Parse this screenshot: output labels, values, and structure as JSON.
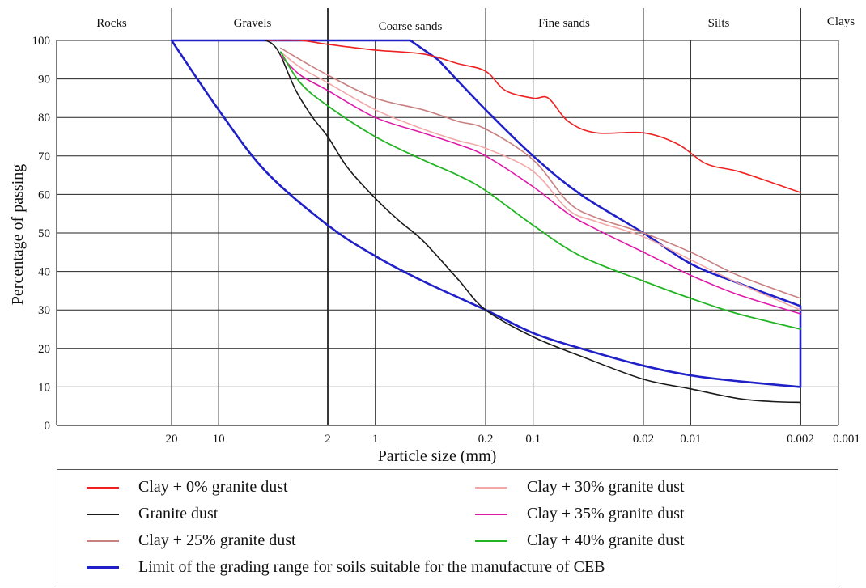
{
  "chart_data": {
    "type": "line",
    "xlabel": "Particle size (mm)",
    "ylabel": "Percentage of passing",
    "x_scale": "log",
    "x_reversed": true,
    "xlim": [
      20,
      0.002
    ],
    "ylim": [
      0,
      100
    ],
    "x_tick_labels": [
      "20",
      "10",
      "2",
      "1",
      "0.2",
      "0.1",
      "0.02",
      "0.01",
      "0.002",
      "0.001"
    ],
    "y_tick_labels": [
      "0",
      "10",
      "20",
      "30",
      "40",
      "50",
      "60",
      "70",
      "80",
      "90",
      "100"
    ],
    "grid": true,
    "zones": [
      "Rocks",
      "Gravels",
      "Coarse sands",
      "Fine sands",
      "Silts",
      "Clays"
    ],
    "series": [
      {
        "name": "Clay + 0% granite dust",
        "color": "#ee2222",
        "width": 1.6,
        "points": [
          [
            5,
            100
          ],
          [
            3,
            100
          ],
          [
            2,
            99
          ],
          [
            1,
            97.5
          ],
          [
            0.5,
            96.5
          ],
          [
            0.3,
            94
          ],
          [
            0.2,
            92
          ],
          [
            0.15,
            87
          ],
          [
            0.1,
            85
          ],
          [
            0.08,
            85
          ],
          [
            0.06,
            79
          ],
          [
            0.04,
            76
          ],
          [
            0.02,
            76
          ],
          [
            0.012,
            73
          ],
          [
            0.008,
            68
          ],
          [
            0.005,
            66
          ],
          [
            0.003,
            63
          ],
          [
            0.002,
            60.5
          ]
        ]
      },
      {
        "name": "Granite dust",
        "color": "#1a1a1a",
        "width": 1.6,
        "points": [
          [
            5,
            100
          ],
          [
            4.5,
            99
          ],
          [
            4,
            96
          ],
          [
            3.2,
            87
          ],
          [
            2.5,
            80
          ],
          [
            2,
            75
          ],
          [
            1.5,
            67
          ],
          [
            1,
            59
          ],
          [
            0.7,
            53
          ],
          [
            0.5,
            48
          ],
          [
            0.3,
            38
          ],
          [
            0.2,
            30
          ],
          [
            0.1,
            23
          ],
          [
            0.05,
            18
          ],
          [
            0.02,
            12
          ],
          [
            0.01,
            9.5
          ],
          [
            0.005,
            7
          ],
          [
            0.003,
            6.2
          ],
          [
            0.002,
            6
          ]
        ]
      },
      {
        "name": "Clay + 25% granite dust",
        "color": "#c88080",
        "width": 1.6,
        "points": [
          [
            4,
            98
          ],
          [
            3,
            95
          ],
          [
            2,
            91
          ],
          [
            1,
            85
          ],
          [
            0.5,
            82
          ],
          [
            0.3,
            79
          ],
          [
            0.2,
            77
          ],
          [
            0.1,
            69
          ],
          [
            0.06,
            58
          ],
          [
            0.04,
            54
          ],
          [
            0.02,
            50
          ],
          [
            0.01,
            45
          ],
          [
            0.005,
            39
          ],
          [
            0.002,
            33
          ]
        ]
      },
      {
        "name": "Clay + 30% granite dust",
        "color": "#f2a8a8",
        "width": 1.6,
        "points": [
          [
            4,
            97
          ],
          [
            3,
            93
          ],
          [
            2,
            89
          ],
          [
            1,
            82
          ],
          [
            0.5,
            77
          ],
          [
            0.3,
            74
          ],
          [
            0.2,
            72
          ],
          [
            0.1,
            66
          ],
          [
            0.06,
            56
          ],
          [
            0.04,
            53
          ],
          [
            0.02,
            49
          ],
          [
            0.01,
            43
          ],
          [
            0.005,
            37
          ],
          [
            0.002,
            30
          ]
        ]
      },
      {
        "name": "Clay + 35% granite dust",
        "color": "#dd1aa8",
        "width": 1.6,
        "points": [
          [
            4,
            96
          ],
          [
            3,
            91
          ],
          [
            2,
            87
          ],
          [
            1,
            80
          ],
          [
            0.5,
            76
          ],
          [
            0.3,
            73
          ],
          [
            0.2,
            70
          ],
          [
            0.1,
            62
          ],
          [
            0.06,
            55
          ],
          [
            0.04,
            51
          ],
          [
            0.02,
            45
          ],
          [
            0.01,
            39
          ],
          [
            0.005,
            34
          ],
          [
            0.002,
            29
          ]
        ]
      },
      {
        "name": "Clay + 40% granite dust",
        "color": "#22b422",
        "width": 1.8,
        "points": [
          [
            4,
            97
          ],
          [
            3,
            89
          ],
          [
            2,
            83
          ],
          [
            1,
            75
          ],
          [
            0.5,
            69
          ],
          [
            0.3,
            65
          ],
          [
            0.2,
            61
          ],
          [
            0.1,
            52
          ],
          [
            0.05,
            44
          ],
          [
            0.02,
            37.5
          ],
          [
            0.01,
            33
          ],
          [
            0.005,
            29
          ],
          [
            0.002,
            25
          ]
        ]
      },
      {
        "name": "Limit of the grading range for soils suitable for the manufacture of CEB",
        "color": "#2020c8",
        "width": 2.6,
        "legend": true,
        "points": [
          [
            20,
            100
          ],
          [
            10,
            82
          ],
          [
            5,
            66
          ],
          [
            2,
            52
          ],
          [
            1,
            44
          ],
          [
            0.5,
            37.5
          ],
          [
            0.2,
            30
          ],
          [
            0.1,
            24
          ],
          [
            0.05,
            20
          ],
          [
            0.02,
            15.5
          ],
          [
            0.01,
            13
          ],
          [
            0.005,
            11.5
          ],
          [
            0.002,
            10
          ],
          [
            0.002,
            31
          ],
          [
            0.005,
            37
          ],
          [
            0.01,
            42
          ],
          [
            0.02,
            50
          ],
          [
            0.05,
            60
          ],
          [
            0.1,
            70
          ],
          [
            0.2,
            82
          ],
          [
            0.4,
            95
          ],
          [
            0.6,
            100
          ],
          [
            20,
            100
          ]
        ]
      }
    ],
    "legend_items": [
      {
        "label": "Clay + 0% granite dust",
        "color": "#ee2222"
      },
      {
        "label": "Clay + 30% granite dust",
        "color": "#f2a8a8"
      },
      {
        "label": "Granite dust",
        "color": "#1a1a1a"
      },
      {
        "label": "Clay + 35% granite dust",
        "color": "#dd1aa8"
      },
      {
        "label": "Clay + 25% granite dust",
        "color": "#c88080"
      },
      {
        "label": "Clay + 40% granite dust",
        "color": "#22b422"
      },
      {
        "label": "Limit of the grading range for soils suitable for the manufacture of CEB",
        "color": "#2020c8"
      }
    ]
  }
}
